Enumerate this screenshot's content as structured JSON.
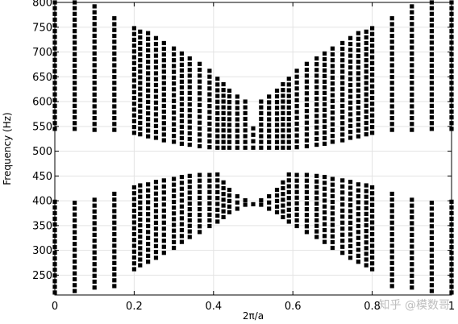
{
  "chart_data": {
    "type": "scatter",
    "xlabel": "2π/a",
    "ylabel": "Frequency (Hz)",
    "xlim": [
      0,
      1
    ],
    "ylim": [
      210,
      800
    ],
    "xticks": [
      0,
      0.2,
      0.4,
      0.6,
      0.8,
      1
    ],
    "xtick_labels": [
      "0",
      "0.2",
      "0.4",
      "0.6",
      "0.8",
      "1"
    ],
    "yticks": [
      250,
      300,
      350,
      400,
      450,
      500,
      550,
      600,
      650,
      700,
      750,
      800
    ],
    "grid": true,
    "marker_color": "#000000",
    "grid_color": "#e3e3e3",
    "band_edges": [
      {
        "x": 0.0,
        "bands": [
          [
            545,
            800
          ],
          [
            215,
            398
          ]
        ]
      },
      {
        "x": 0.05,
        "bands": [
          [
            545,
            800
          ],
          [
            218,
            396
          ]
        ]
      },
      {
        "x": 0.1,
        "bands": [
          [
            543,
            792
          ],
          [
            225,
            402
          ]
        ]
      },
      {
        "x": 0.15,
        "bands": [
          [
            543,
            768
          ],
          [
            228,
            414
          ]
        ]
      },
      {
        "x": 0.2,
        "bands": [
          [
            537,
            748
          ],
          [
            262,
            427
          ]
        ]
      },
      {
        "x": 0.215,
        "bands": [
          [
            534,
            741
          ],
          [
            270,
            431
          ]
        ]
      },
      {
        "x": 0.235,
        "bands": [
          [
            530,
            738
          ],
          [
            277,
            433
          ]
        ]
      },
      {
        "x": 0.255,
        "bands": [
          [
            527,
            728
          ],
          [
            285,
            438
          ]
        ]
      },
      {
        "x": 0.275,
        "bands": [
          [
            522,
            718
          ],
          [
            295,
            441
          ]
        ]
      },
      {
        "x": 0.3,
        "bands": [
          [
            519,
            707
          ],
          [
            305,
            444
          ]
        ]
      },
      {
        "x": 0.32,
        "bands": [
          [
            515,
            697
          ],
          [
            317,
            448
          ]
        ]
      },
      {
        "x": 0.34,
        "bands": [
          [
            513,
            687
          ],
          [
            327,
            450
          ]
        ]
      },
      {
        "x": 0.365,
        "bands": [
          [
            510,
            676
          ],
          [
            337,
            452
          ]
        ]
      },
      {
        "x": 0.39,
        "bands": [
          [
            508,
            662
          ],
          [
            349,
            452
          ]
        ]
      },
      {
        "x": 0.41,
        "bands": [
          [
            507,
            646
          ],
          [
            358,
            453
          ]
        ]
      },
      {
        "x": 0.425,
        "bands": [
          [
            507,
            635
          ],
          [
            367,
            437
          ]
        ]
      },
      {
        "x": 0.44,
        "bands": [
          [
            507,
            622
          ],
          [
            377,
            422
          ]
        ]
      },
      {
        "x": 0.46,
        "bands": [
          [
            507,
            610
          ],
          [
            384,
            409
          ]
        ]
      },
      {
        "x": 0.48,
        "bands": [
          [
            507,
            600
          ],
          [
            392,
            401
          ]
        ]
      },
      {
        "x": 0.5,
        "bands": [
          [
            507,
            546
          ],
          [
            393,
            393
          ]
        ]
      },
      {
        "x": 0.52,
        "bands": [
          [
            507,
            600
          ],
          [
            392,
            401
          ]
        ]
      },
      {
        "x": 0.54,
        "bands": [
          [
            507,
            610
          ],
          [
            384,
            409
          ]
        ]
      },
      {
        "x": 0.56,
        "bands": [
          [
            507,
            622
          ],
          [
            377,
            422
          ]
        ]
      },
      {
        "x": 0.575,
        "bands": [
          [
            507,
            635
          ],
          [
            367,
            437
          ]
        ]
      },
      {
        "x": 0.59,
        "bands": [
          [
            507,
            646
          ],
          [
            358,
            453
          ]
        ]
      },
      {
        "x": 0.61,
        "bands": [
          [
            508,
            662
          ],
          [
            349,
            452
          ]
        ]
      },
      {
        "x": 0.635,
        "bands": [
          [
            510,
            676
          ],
          [
            337,
            452
          ]
        ]
      },
      {
        "x": 0.66,
        "bands": [
          [
            513,
            687
          ],
          [
            327,
            450
          ]
        ]
      },
      {
        "x": 0.68,
        "bands": [
          [
            515,
            697
          ],
          [
            317,
            448
          ]
        ]
      },
      {
        "x": 0.7,
        "bands": [
          [
            519,
            707
          ],
          [
            305,
            444
          ]
        ]
      },
      {
        "x": 0.725,
        "bands": [
          [
            522,
            718
          ],
          [
            295,
            441
          ]
        ]
      },
      {
        "x": 0.745,
        "bands": [
          [
            527,
            728
          ],
          [
            285,
            438
          ]
        ]
      },
      {
        "x": 0.765,
        "bands": [
          [
            530,
            738
          ],
          [
            277,
            433
          ]
        ]
      },
      {
        "x": 0.785,
        "bands": [
          [
            534,
            741
          ],
          [
            270,
            431
          ]
        ]
      },
      {
        "x": 0.8,
        "bands": [
          [
            537,
            748
          ],
          [
            262,
            427
          ]
        ]
      },
      {
        "x": 0.85,
        "bands": [
          [
            543,
            768
          ],
          [
            228,
            414
          ]
        ]
      },
      {
        "x": 0.9,
        "bands": [
          [
            543,
            792
          ],
          [
            225,
            402
          ]
        ]
      },
      {
        "x": 0.95,
        "bands": [
          [
            545,
            800
          ],
          [
            218,
            396
          ]
        ]
      },
      {
        "x": 1.0,
        "bands": [
          [
            545,
            800
          ],
          [
            215,
            398
          ]
        ]
      }
    ]
  },
  "watermark": "知乎 @模数哥"
}
